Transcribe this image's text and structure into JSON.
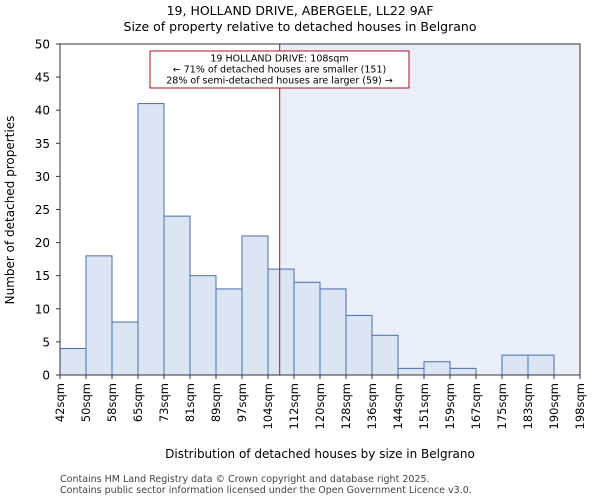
{
  "chart_data": {
    "type": "bar",
    "title_line1": "19, HOLLAND DRIVE, ABERGELE, LL22 9AF",
    "title_line2": "Size of property relative to detached houses in Belgrano",
    "xlabel": "Distribution of detached houses by size in Belgrano",
    "ylabel": "Number of detached properties",
    "ylim": [
      0,
      50
    ],
    "yticks": [
      0,
      5,
      10,
      15,
      20,
      25,
      30,
      35,
      40,
      45,
      50
    ],
    "bin_labels": [
      "42sqm",
      "50sqm",
      "58sqm",
      "65sqm",
      "73sqm",
      "81sqm",
      "89sqm",
      "97sqm",
      "104sqm",
      "112sqm",
      "120sqm",
      "128sqm",
      "136sqm",
      "144sqm",
      "151sqm",
      "159sqm",
      "167sqm",
      "175sqm",
      "183sqm",
      "190sqm",
      "198sqm"
    ],
    "values": [
      4,
      18,
      8,
      41,
      24,
      15,
      13,
      21,
      16,
      14,
      13,
      9,
      6,
      1,
      2,
      1,
      0,
      3,
      3,
      0
    ],
    "marker": {
      "value_bin_position": 8.45,
      "label_line1": "19 HOLLAND DRIVE: 108sqm",
      "label_line2": "← 71% of detached houses are smaller (151)",
      "label_line3": "28% of semi-detached houses are larger (59) →"
    },
    "colors": {
      "bar_fill": "#dbe5f4",
      "bar_stroke": "#4a6fa8",
      "highlight_bg": "#e9eef8",
      "marker": "#b01020"
    }
  },
  "footer": {
    "line1": "Contains HM Land Registry data © Crown copyright and database right 2025.",
    "line2": "Contains public sector information licensed under the Open Government Licence v3.0."
  }
}
